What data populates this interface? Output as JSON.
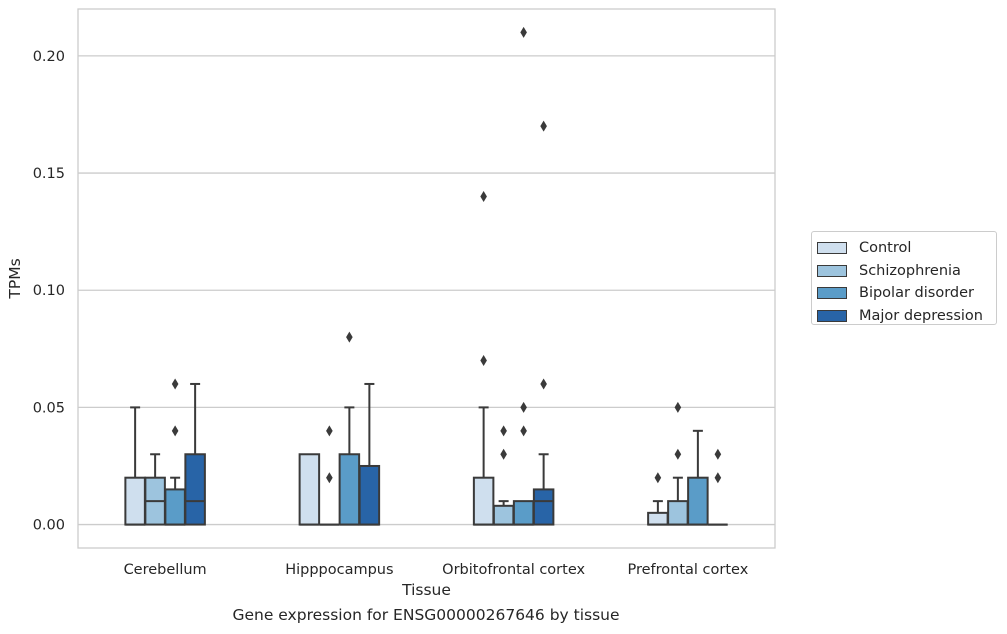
{
  "caption": "Gene expression for ENSG00000267646 by tissue",
  "chart_data": {
    "type": "box",
    "title": "",
    "xlabel": "Tissue",
    "ylabel": "TPMs",
    "ylim": [
      -0.01,
      0.22
    ],
    "yticks": [
      0.0,
      0.05,
      0.1,
      0.15,
      0.2
    ],
    "ytick_labels": [
      "0.00",
      "0.05",
      "0.10",
      "0.15",
      "0.20"
    ],
    "grid": "horizontal",
    "legend_position": "right",
    "categories": [
      "Cerebellum",
      "Hipppocampus",
      "Orbitofrontal cortex",
      "Prefrontal cortex"
    ],
    "series": [
      {
        "name": "Control",
        "color": "#cfdfee",
        "boxes": [
          {
            "q1": 0.0,
            "median": 0.0,
            "q3": 0.02,
            "whisker_low": 0.0,
            "whisker_high": 0.05,
            "outliers": []
          },
          {
            "q1": 0.0,
            "median": 0.0,
            "q3": 0.03,
            "whisker_low": 0.0,
            "whisker_high": 0.03,
            "outliers": []
          },
          {
            "q1": 0.0,
            "median": 0.0,
            "q3": 0.02,
            "whisker_low": 0.0,
            "whisker_high": 0.05,
            "outliers": [
              0.07,
              0.14
            ]
          },
          {
            "q1": 0.0,
            "median": 0.0,
            "q3": 0.005,
            "whisker_low": 0.0,
            "whisker_high": 0.01,
            "outliers": [
              0.02
            ]
          }
        ]
      },
      {
        "name": "Schizophrenia",
        "color": "#9dc4de",
        "boxes": [
          {
            "q1": 0.0,
            "median": 0.01,
            "q3": 0.02,
            "whisker_low": 0.0,
            "whisker_high": 0.03,
            "outliers": []
          },
          {
            "q1": 0.0,
            "median": 0.0,
            "q3": 0.0,
            "whisker_low": 0.0,
            "whisker_high": 0.0,
            "outliers": [
              0.02,
              0.04
            ]
          },
          {
            "q1": 0.0,
            "median": 0.0,
            "q3": 0.008,
            "whisker_low": 0.0,
            "whisker_high": 0.01,
            "outliers": [
              0.03,
              0.04
            ]
          },
          {
            "q1": 0.0,
            "median": 0.0,
            "q3": 0.01,
            "whisker_low": 0.0,
            "whisker_high": 0.02,
            "outliers": [
              0.03,
              0.05
            ]
          }
        ]
      },
      {
        "name": "Bipolar disorder",
        "color": "#5a9cc8",
        "boxes": [
          {
            "q1": 0.0,
            "median": 0.0,
            "q3": 0.015,
            "whisker_low": 0.0,
            "whisker_high": 0.02,
            "outliers": [
              0.04,
              0.06
            ]
          },
          {
            "q1": 0.0,
            "median": 0.0,
            "q3": 0.03,
            "whisker_low": 0.0,
            "whisker_high": 0.05,
            "outliers": [
              0.08
            ]
          },
          {
            "q1": 0.0,
            "median": 0.0,
            "q3": 0.01,
            "whisker_low": 0.0,
            "whisker_high": 0.01,
            "outliers": [
              0.04,
              0.05,
              0.21
            ]
          },
          {
            "q1": 0.0,
            "median": 0.0,
            "q3": 0.02,
            "whisker_low": 0.0,
            "whisker_high": 0.04,
            "outliers": []
          }
        ]
      },
      {
        "name": "Major depression",
        "color": "#2864a7",
        "boxes": [
          {
            "q1": 0.0,
            "median": 0.01,
            "q3": 0.03,
            "whisker_low": 0.0,
            "whisker_high": 0.06,
            "outliers": []
          },
          {
            "q1": 0.0,
            "median": 0.0,
            "q3": 0.025,
            "whisker_low": 0.0,
            "whisker_high": 0.06,
            "outliers": []
          },
          {
            "q1": 0.0,
            "median": 0.01,
            "q3": 0.015,
            "whisker_low": 0.0,
            "whisker_high": 0.03,
            "outliers": [
              0.06,
              0.17
            ]
          },
          {
            "q1": 0.0,
            "median": 0.0,
            "q3": 0.0,
            "whisker_low": 0.0,
            "whisker_high": 0.0,
            "outliers": [
              0.02,
              0.03
            ]
          }
        ]
      }
    ]
  }
}
